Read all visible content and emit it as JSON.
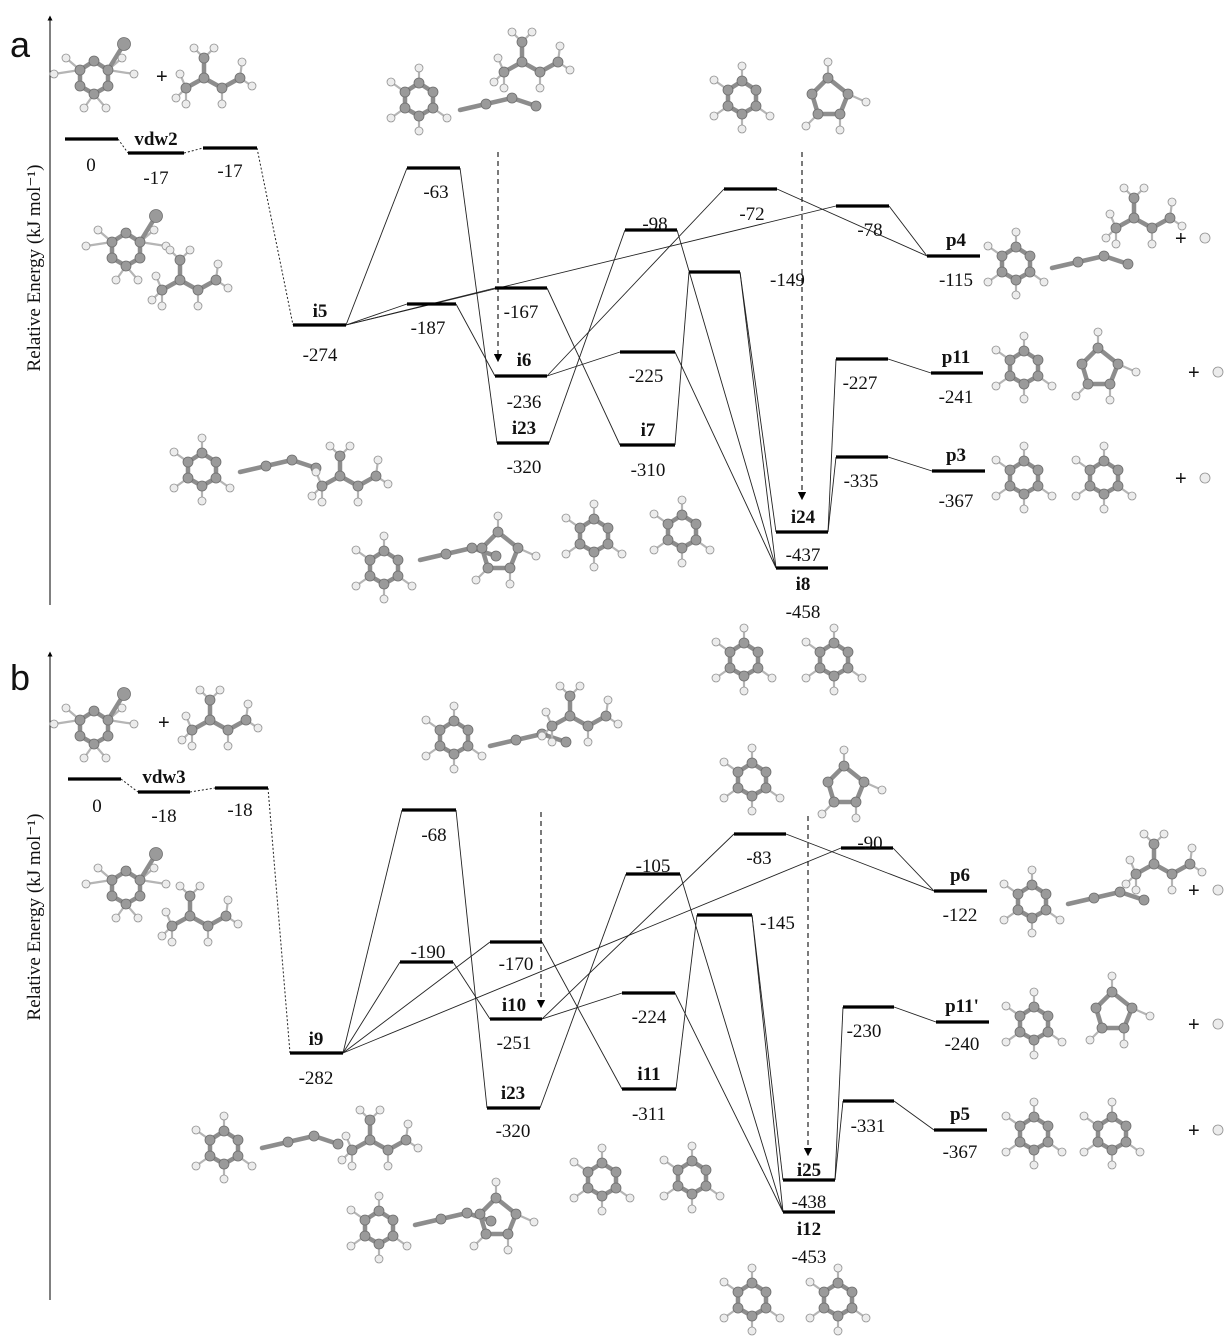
{
  "panels": [
    {
      "letter": "a",
      "y_axis_label": "Relative Energy (kJ mol⁻¹)",
      "levels": [
        {
          "id": "r",
          "label": "",
          "energy": "0"
        },
        {
          "id": "vdw",
          "label": "vdw2",
          "energy": "-17"
        },
        {
          "id": "ts0",
          "label": "",
          "energy": "-17"
        },
        {
          "id": "i5",
          "label": "i5",
          "energy": "-274"
        },
        {
          "id": "t63",
          "label": "",
          "energy": "-63"
        },
        {
          "id": "t187",
          "label": "",
          "energy": "-187"
        },
        {
          "id": "t167",
          "label": "",
          "energy": "-167"
        },
        {
          "id": "i6",
          "label": "i6",
          "energy": "-236"
        },
        {
          "id": "i23",
          "label": "i23",
          "energy": "-320"
        },
        {
          "id": "t98",
          "label": "",
          "energy": "-98"
        },
        {
          "id": "t225",
          "label": "",
          "energy": "-225"
        },
        {
          "id": "i7",
          "label": "i7",
          "energy": "-310"
        },
        {
          "id": "t72",
          "label": "",
          "energy": "-72"
        },
        {
          "id": "t149",
          "label": "",
          "energy": "-149"
        },
        {
          "id": "i24",
          "label": "i24",
          "energy": "-437"
        },
        {
          "id": "i8",
          "label": "i8",
          "energy": "-458"
        },
        {
          "id": "t78",
          "label": "",
          "energy": "-78"
        },
        {
          "id": "t227",
          "label": "",
          "energy": "-227"
        },
        {
          "id": "t335",
          "label": "",
          "energy": "-335"
        },
        {
          "id": "pA",
          "label": "p4",
          "energy": "-115"
        },
        {
          "id": "pB",
          "label": "p11",
          "energy": "-241"
        },
        {
          "id": "pC",
          "label": "p3",
          "energy": "-367"
        }
      ]
    },
    {
      "letter": "b",
      "y_axis_label": "Relative Energy (kJ mol⁻¹)",
      "levels": [
        {
          "id": "r",
          "label": "",
          "energy": "0"
        },
        {
          "id": "vdw",
          "label": "vdw3",
          "energy": "-18"
        },
        {
          "id": "ts0",
          "label": "",
          "energy": "-18"
        },
        {
          "id": "i9",
          "label": "i9",
          "energy": "-282"
        },
        {
          "id": "t68",
          "label": "",
          "energy": "-68"
        },
        {
          "id": "t190",
          "label": "",
          "energy": "-190"
        },
        {
          "id": "t170",
          "label": "",
          "energy": "-170"
        },
        {
          "id": "i10",
          "label": "i10",
          "energy": "-251"
        },
        {
          "id": "i23",
          "label": "i23",
          "energy": "-320"
        },
        {
          "id": "t105",
          "label": "",
          "energy": "-105"
        },
        {
          "id": "t224",
          "label": "",
          "energy": "-224"
        },
        {
          "id": "i11",
          "label": "i11",
          "energy": "-311"
        },
        {
          "id": "t83",
          "label": "",
          "energy": "-83"
        },
        {
          "id": "t145",
          "label": "",
          "energy": "-145"
        },
        {
          "id": "i25",
          "label": "i25",
          "energy": "-438"
        },
        {
          "id": "i12",
          "label": "i12",
          "energy": "-453"
        },
        {
          "id": "t90",
          "label": "",
          "energy": "-90"
        },
        {
          "id": "t230",
          "label": "",
          "energy": "-230"
        },
        {
          "id": "t331",
          "label": "",
          "energy": "-331"
        },
        {
          "id": "pA",
          "label": "p6",
          "energy": "-122"
        },
        {
          "id": "pB",
          "label": "p11'",
          "energy": "-240"
        },
        {
          "id": "pC",
          "label": "p5",
          "energy": "-367"
        }
      ]
    }
  ],
  "plus_sign": "+"
}
